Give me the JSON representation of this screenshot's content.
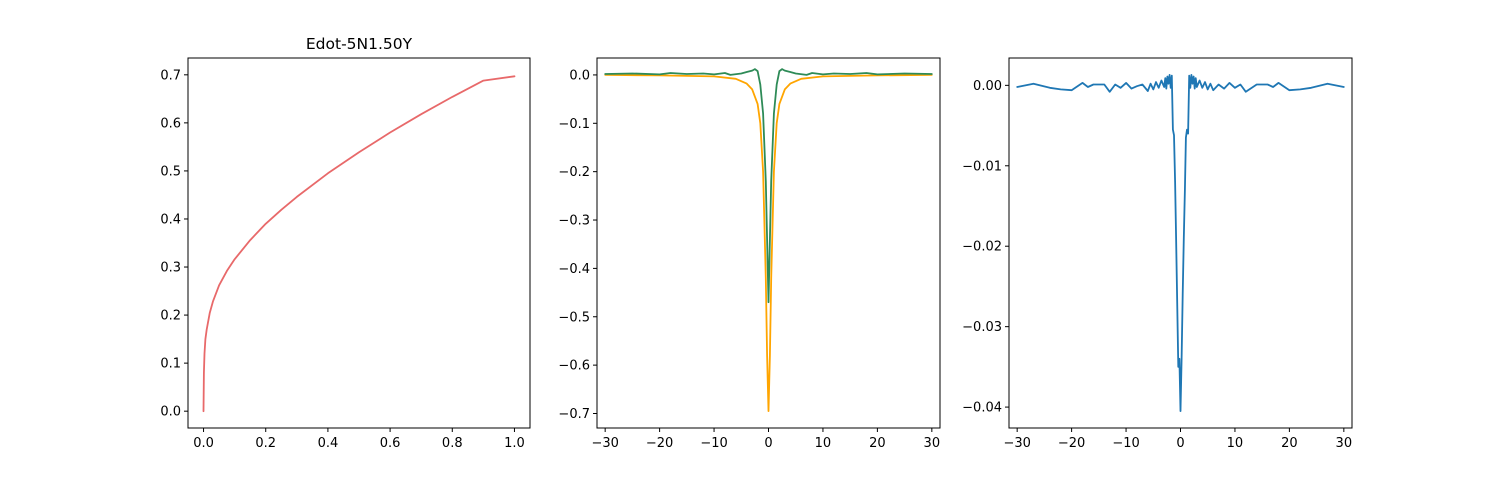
{
  "chart_data": [
    {
      "type": "line",
      "title": "Edot-5N1.50Y",
      "xlabel": "",
      "ylabel": "",
      "xlim": [
        -0.05,
        1.05
      ],
      "ylim": [
        -0.035,
        0.735
      ],
      "xticks": [
        0.0,
        0.2,
        0.4,
        0.6,
        0.8,
        1.0
      ],
      "xtick_labels": [
        "0.0",
        "0.2",
        "0.4",
        "0.6",
        "0.8",
        "1.0"
      ],
      "yticks": [
        0.0,
        0.1,
        0.2,
        0.3,
        0.4,
        0.5,
        0.6,
        0.7
      ],
      "ytick_labels": [
        "0.0",
        "0.1",
        "0.2",
        "0.3",
        "0.4",
        "0.5",
        "0.6",
        "0.7"
      ],
      "grid": false,
      "series": [
        {
          "color": "#e8696a",
          "x": [
            0.0,
            0.001,
            0.003,
            0.006,
            0.01,
            0.02,
            0.03,
            0.05,
            0.075,
            0.1,
            0.15,
            0.2,
            0.25,
            0.3,
            0.4,
            0.5,
            0.6,
            0.7,
            0.8,
            0.9,
            1.0
          ],
          "y": [
            0.0,
            0.08,
            0.12,
            0.15,
            0.17,
            0.205,
            0.228,
            0.262,
            0.292,
            0.316,
            0.356,
            0.39,
            0.419,
            0.446,
            0.495,
            0.539,
            0.58,
            0.618,
            0.654,
            0.688,
            0.697
          ]
        }
      ]
    },
    {
      "type": "line",
      "title": "",
      "xlabel": "",
      "ylabel": "",
      "xlim": [
        -31.5,
        31.5
      ],
      "ylim": [
        -0.73,
        0.035
      ],
      "xticks": [
        -30,
        -20,
        -10,
        0,
        10,
        20,
        30
      ],
      "xtick_labels": [
        "−30",
        "−20",
        "−10",
        "0",
        "10",
        "20",
        "30"
      ],
      "yticks": [
        0.0,
        -0.1,
        -0.2,
        -0.3,
        -0.4,
        -0.5,
        -0.6,
        -0.7
      ],
      "ytick_labels": [
        "0.0",
        "−0.1",
        "−0.2",
        "−0.3",
        "−0.4",
        "−0.5",
        "−0.6",
        "−0.7"
      ],
      "grid": false,
      "series": [
        {
          "color": "#ffa500",
          "x": [
            -30,
            -20,
            -10,
            -6,
            -4,
            -3,
            -2,
            -1.5,
            -1,
            -0.5,
            -0.25,
            0,
            0.25,
            0.5,
            1,
            1.5,
            2,
            3,
            4,
            6,
            10,
            20,
            30
          ],
          "y": [
            0.0,
            -0.001,
            -0.003,
            -0.008,
            -0.018,
            -0.03,
            -0.06,
            -0.1,
            -0.2,
            -0.42,
            -0.58,
            -0.695,
            -0.58,
            -0.42,
            -0.2,
            -0.1,
            -0.06,
            -0.03,
            -0.018,
            -0.008,
            -0.003,
            -0.001,
            0.0
          ]
        },
        {
          "color": "#2e8b57",
          "x": [
            -30,
            -25,
            -20,
            -18,
            -15,
            -12,
            -10,
            -8,
            -7,
            -5,
            -4,
            -3,
            -2.5,
            -2,
            -1.5,
            -1,
            -0.5,
            0,
            0.5,
            1,
            1.5,
            2,
            2.5,
            3,
            4,
            5,
            7,
            8,
            10,
            12,
            15,
            18,
            20,
            25,
            30
          ],
          "y": [
            0.002,
            0.003,
            0.001,
            0.004,
            0.002,
            0.003,
            0.001,
            0.004,
            0.0,
            0.003,
            0.006,
            0.009,
            0.012,
            0.008,
            -0.02,
            -0.08,
            -0.22,
            -0.47,
            -0.22,
            -0.08,
            -0.02,
            0.008,
            0.012,
            0.009,
            0.006,
            0.003,
            0.0,
            0.004,
            0.001,
            0.003,
            0.002,
            0.004,
            0.001,
            0.003,
            0.002
          ]
        }
      ]
    },
    {
      "type": "line",
      "title": "",
      "xlabel": "",
      "ylabel": "",
      "xlim": [
        -31.5,
        31.5
      ],
      "ylim": [
        -0.0426,
        0.0034
      ],
      "xticks": [
        -30,
        -20,
        -10,
        0,
        10,
        20,
        30
      ],
      "xtick_labels": [
        "−30",
        "−20",
        "−10",
        "0",
        "10",
        "20",
        "30"
      ],
      "yticks": [
        0.0,
        -0.01,
        -0.02,
        -0.03,
        -0.04
      ],
      "ytick_labels": [
        "0.00",
        "−0.01",
        "−0.02",
        "−0.03",
        "−0.04"
      ],
      "grid": false,
      "series": [
        {
          "color": "#1f77b4",
          "x": [
            -30,
            -27,
            -24,
            -22,
            -20,
            -18,
            -17,
            -16,
            -14,
            -13,
            -12,
            -11,
            -10,
            -9,
            -8,
            -7,
            -6,
            -5.5,
            -5,
            -4.5,
            -4,
            -3.5,
            -3,
            -2.8,
            -2.6,
            -2.4,
            -2.2,
            -2,
            -1.8,
            -1.6,
            -1.4,
            -1.2,
            -1,
            -0.8,
            -0.6,
            -0.4,
            -0.2,
            0,
            0.2,
            0.4,
            0.6,
            0.8,
            1,
            1.2,
            1.4,
            1.6,
            1.8,
            2,
            2.2,
            2.4,
            2.6,
            2.8,
            3,
            3.5,
            4,
            4.5,
            5,
            5.5,
            6,
            7,
            8,
            9,
            10,
            11,
            12,
            14,
            16,
            17,
            18,
            20,
            22,
            24,
            27,
            30
          ],
          "y": [
            -0.0002,
            0.0002,
            -0.0003,
            -0.0005,
            -0.0006,
            0.0003,
            -0.0002,
            0.0001,
            0.0001,
            -0.0008,
            0.0001,
            -0.0003,
            0.0003,
            -0.0004,
            -0.0001,
            0.0001,
            -0.0007,
            0.0002,
            -0.0005,
            0.0004,
            -0.0003,
            0.0006,
            -0.0002,
            0.0009,
            -0.0004,
            0.0011,
            0.0002,
            0.0013,
            -0.0003,
            0.0012,
            -0.0055,
            -0.0062,
            -0.012,
            -0.019,
            -0.027,
            -0.035,
            -0.034,
            -0.0405,
            -0.034,
            -0.026,
            -0.019,
            -0.013,
            -0.0065,
            -0.0055,
            -0.006,
            0.0012,
            -0.0003,
            0.0013,
            0.0002,
            0.0011,
            -0.0004,
            0.0009,
            -0.0002,
            0.0006,
            -0.0003,
            0.0004,
            -0.0005,
            0.0002,
            -0.0006,
            0.0001,
            -0.0004,
            0.0003,
            -0.0003,
            0.0001,
            -0.0008,
            0.0001,
            0.0001,
            -0.0002,
            0.0003,
            -0.0006,
            -0.0005,
            -0.0003,
            0.0002,
            -0.0002
          ]
        }
      ]
    }
  ]
}
